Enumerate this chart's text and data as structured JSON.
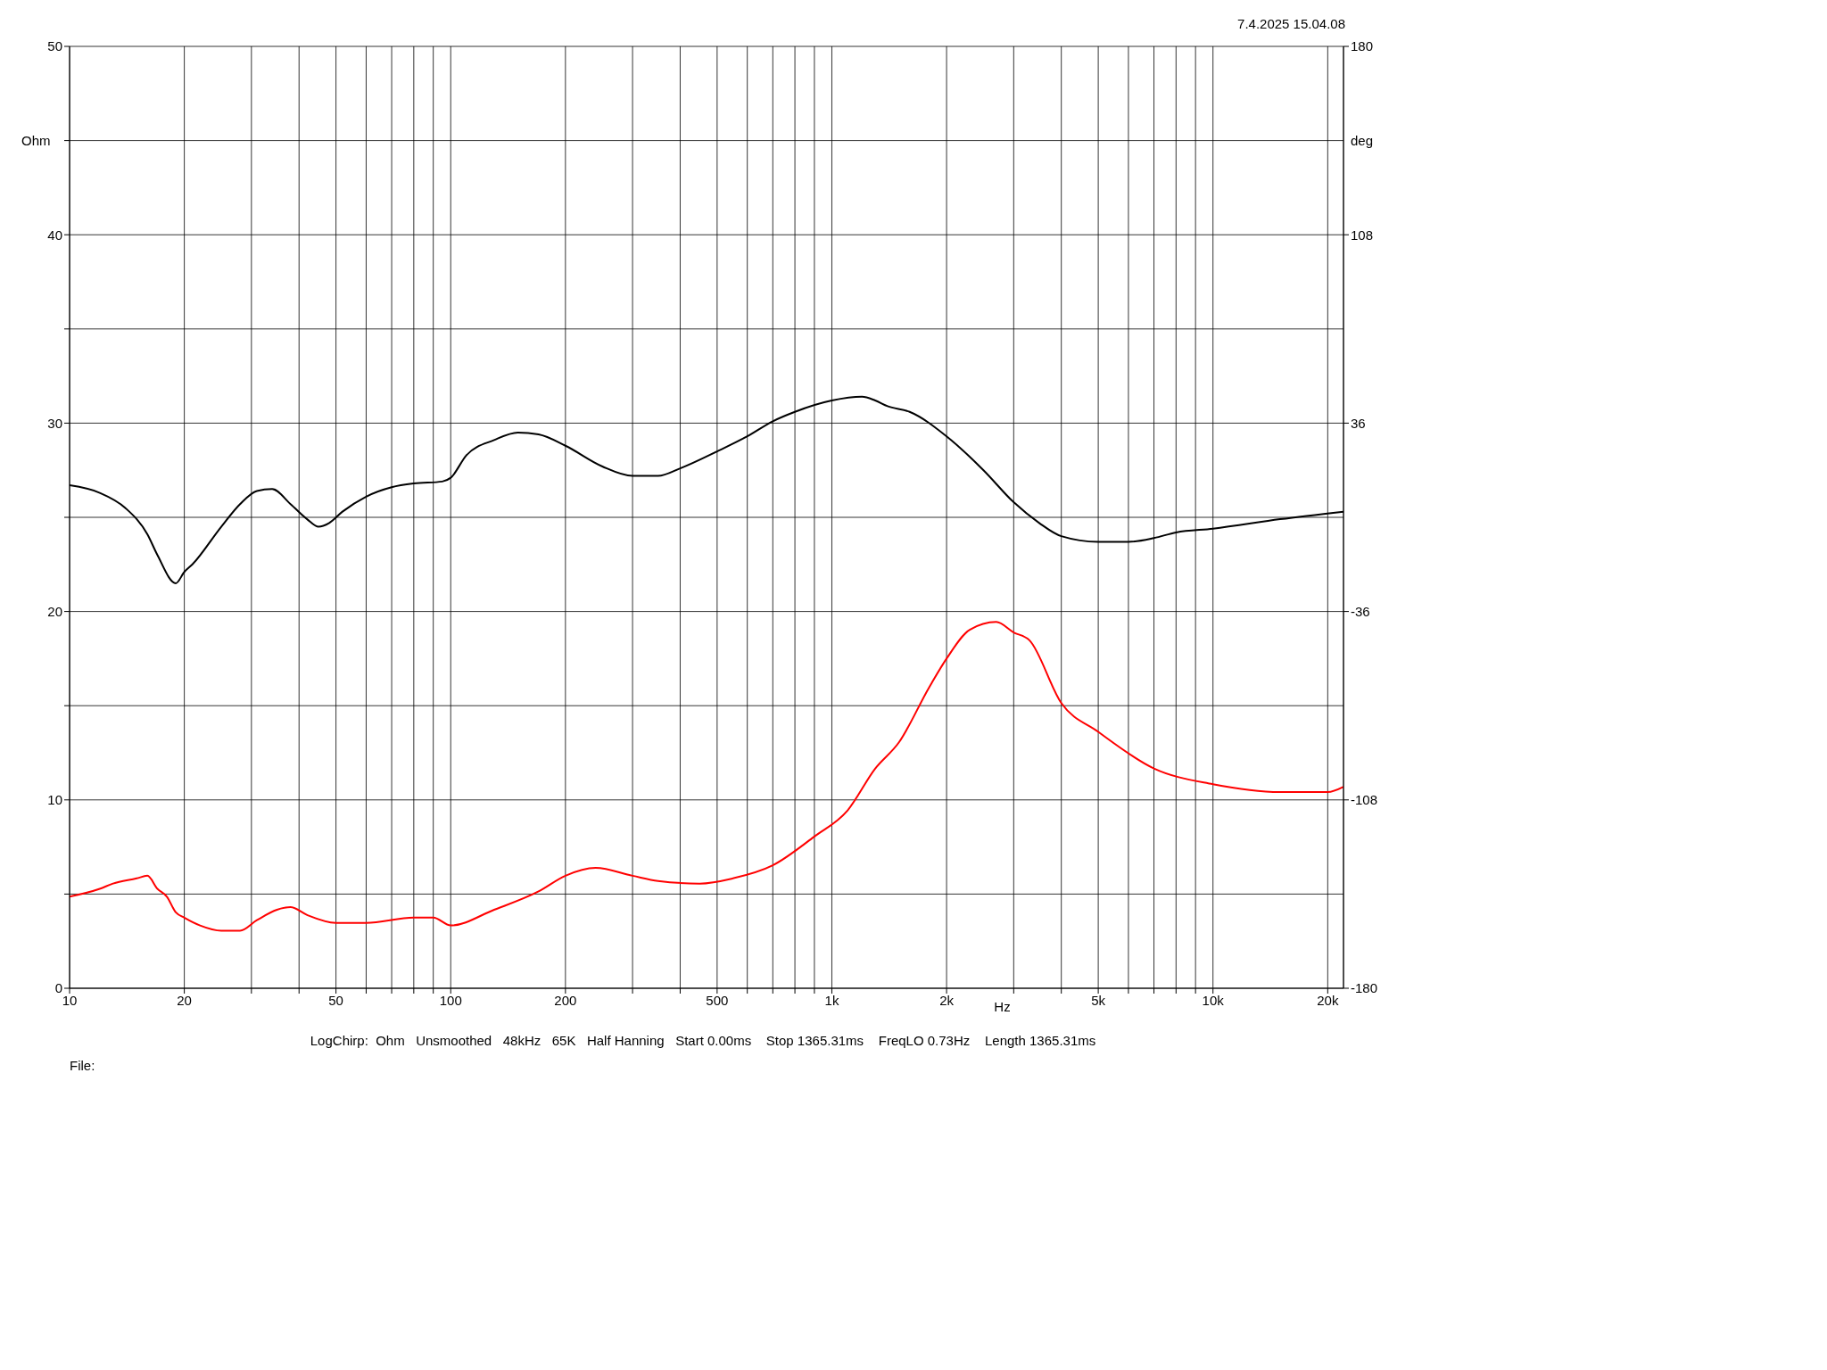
{
  "chart_data": {
    "type": "line",
    "xlabel": "Hz",
    "ylabel": "Ohm",
    "y2label": "deg",
    "annotations": [
      "7.4.2025 15.04.08",
      "LogChirp:  Ohm   Unsmoothed   48kHz   65K   Half Hanning   Start 0.00ms    Stop 1365.31ms    FreqLO 0.73Hz    Length 1365.31ms",
      "File:"
    ],
    "log": "x",
    "grid": true,
    "xlim": [
      10,
      22000
    ],
    "xticks": [
      10,
      20,
      {
        "value": 30,
        "label": null
      },
      {
        "value": 40,
        "label": null
      },
      50,
      {
        "value": 60,
        "label": null
      },
      {
        "value": 70,
        "label": null
      },
      {
        "value": 80,
        "label": null
      },
      {
        "value": 90,
        "label": null
      },
      100,
      200,
      {
        "value": 300,
        "label": null
      },
      {
        "value": 400,
        "label": null
      },
      500,
      {
        "value": 600,
        "label": null
      },
      {
        "value": 700,
        "label": null
      },
      {
        "value": 800,
        "label": null
      },
      {
        "value": 900,
        "label": null
      },
      {
        "value": 1000,
        "label": "1k"
      },
      {
        "value": 2000,
        "label": "2k"
      },
      {
        "value": 3000,
        "label": null
      },
      {
        "value": 4000,
        "label": null
      },
      {
        "value": 5000,
        "label": "5k"
      },
      {
        "value": 6000,
        "label": null
      },
      {
        "value": 7000,
        "label": null
      },
      {
        "value": 8000,
        "label": null
      },
      {
        "value": 9000,
        "label": null
      },
      {
        "value": 10000,
        "label": "10k"
      },
      {
        "value": 20000,
        "label": "20k"
      }
    ],
    "ylim": [
      0,
      50
    ],
    "yticks": [
      0,
      {
        "value": 5,
        "label": null
      },
      10,
      {
        "value": 15,
        "label": null
      },
      20,
      {
        "value": 25,
        "label": null
      },
      30,
      {
        "value": 35,
        "label": null
      },
      40,
      {
        "value": 45,
        "label": null
      },
      50
    ],
    "y2lim": [
      -180,
      180
    ],
    "y2ticks": [
      -180,
      -108,
      -36,
      36,
      108,
      180
    ],
    "series": [
      {
        "color": "#000000",
        "x": [
          10,
          12,
          14,
          16,
          17,
          19,
          20,
          21,
          25,
          28,
          31,
          34,
          38,
          42,
          45,
          48,
          52,
          60,
          70,
          80,
          95,
          100,
          110,
          130,
          150,
          170,
          200,
          250,
          300,
          350,
          400,
          500,
          600,
          700,
          800,
          1000,
          1200,
          1300,
          1400,
          1600,
          2000,
          2500,
          3000,
          3500,
          4000,
          5000,
          6000,
          7000,
          8000,
          10000,
          15000,
          22000
        ],
        "values": [
          26.7,
          26.3,
          25.5,
          24.1,
          23.0,
          21.5,
          22.1,
          22.5,
          24.5,
          25.7,
          26.4,
          26.5,
          25.7,
          24.9,
          24.5,
          24.7,
          25.3,
          26.1,
          26.6,
          26.8,
          26.9,
          27.1,
          28.3,
          29.1,
          29.5,
          29.4,
          28.8,
          27.7,
          27.2,
          27.2,
          27.6,
          28.5,
          29.3,
          30.1,
          30.6,
          31.2,
          31.4,
          31.2,
          30.9,
          30.6,
          29.3,
          27.5,
          25.8,
          24.7,
          24.0,
          23.7,
          23.7,
          23.9,
          24.2,
          24.4,
          24.9,
          25.3
        ]
      },
      {
        "color": "#ff0000",
        "axis": "y2",
        "x": [
          10,
          12,
          13,
          15,
          16,
          17,
          18,
          19,
          20,
          22,
          25,
          28,
          31,
          35,
          38,
          42,
          50,
          60,
          80,
          90,
          100,
          130,
          170,
          200,
          240,
          300,
          350,
          450,
          550,
          700,
          900,
          1100,
          1300,
          1500,
          1800,
          2000,
          2300,
          2700,
          3000,
          3300,
          4000,
          5000,
          7000,
          10000,
          15000,
          20000,
          22000
        ],
        "values": [
          -145,
          -142,
          -140,
          -138,
          -137,
          -142,
          -145,
          -151,
          -153,
          -156,
          -158,
          -158,
          -154,
          -150,
          -149,
          -152,
          -155,
          -155,
          -153,
          -153,
          -156,
          -150,
          -143,
          -137,
          -134,
          -137,
          -139,
          -140,
          -138,
          -133,
          -122,
          -112,
          -96,
          -86,
          -65,
          -54,
          -43,
          -40,
          -44,
          -47,
          -71,
          -82,
          -96,
          -102,
          -105,
          -105,
          -103
        ]
      }
    ]
  }
}
